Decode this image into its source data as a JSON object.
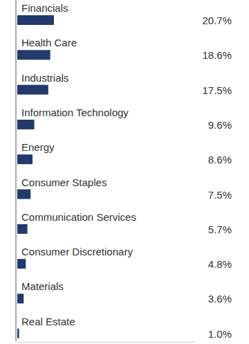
{
  "chart_data": {
    "type": "bar",
    "orientation": "horizontal",
    "categories": [
      "Financials",
      "Health Care",
      "Industrials",
      "Information Technology",
      "Energy",
      "Consumer Staples",
      "Communication Services",
      "Consumer Discretionary",
      "Materials",
      "Real Estate"
    ],
    "values": [
      20.7,
      18.6,
      17.5,
      9.6,
      8.6,
      7.5,
      5.7,
      4.8,
      3.6,
      1.0
    ],
    "value_labels": [
      "20.7%",
      "18.6%",
      "17.5%",
      "9.6%",
      "8.6%",
      "7.5%",
      "5.7%",
      "4.8%",
      "3.6%",
      "1.0%"
    ],
    "data_labels": true,
    "color": "#223a6b",
    "xlim": [
      0,
      100
    ],
    "tick_labels": false
  }
}
